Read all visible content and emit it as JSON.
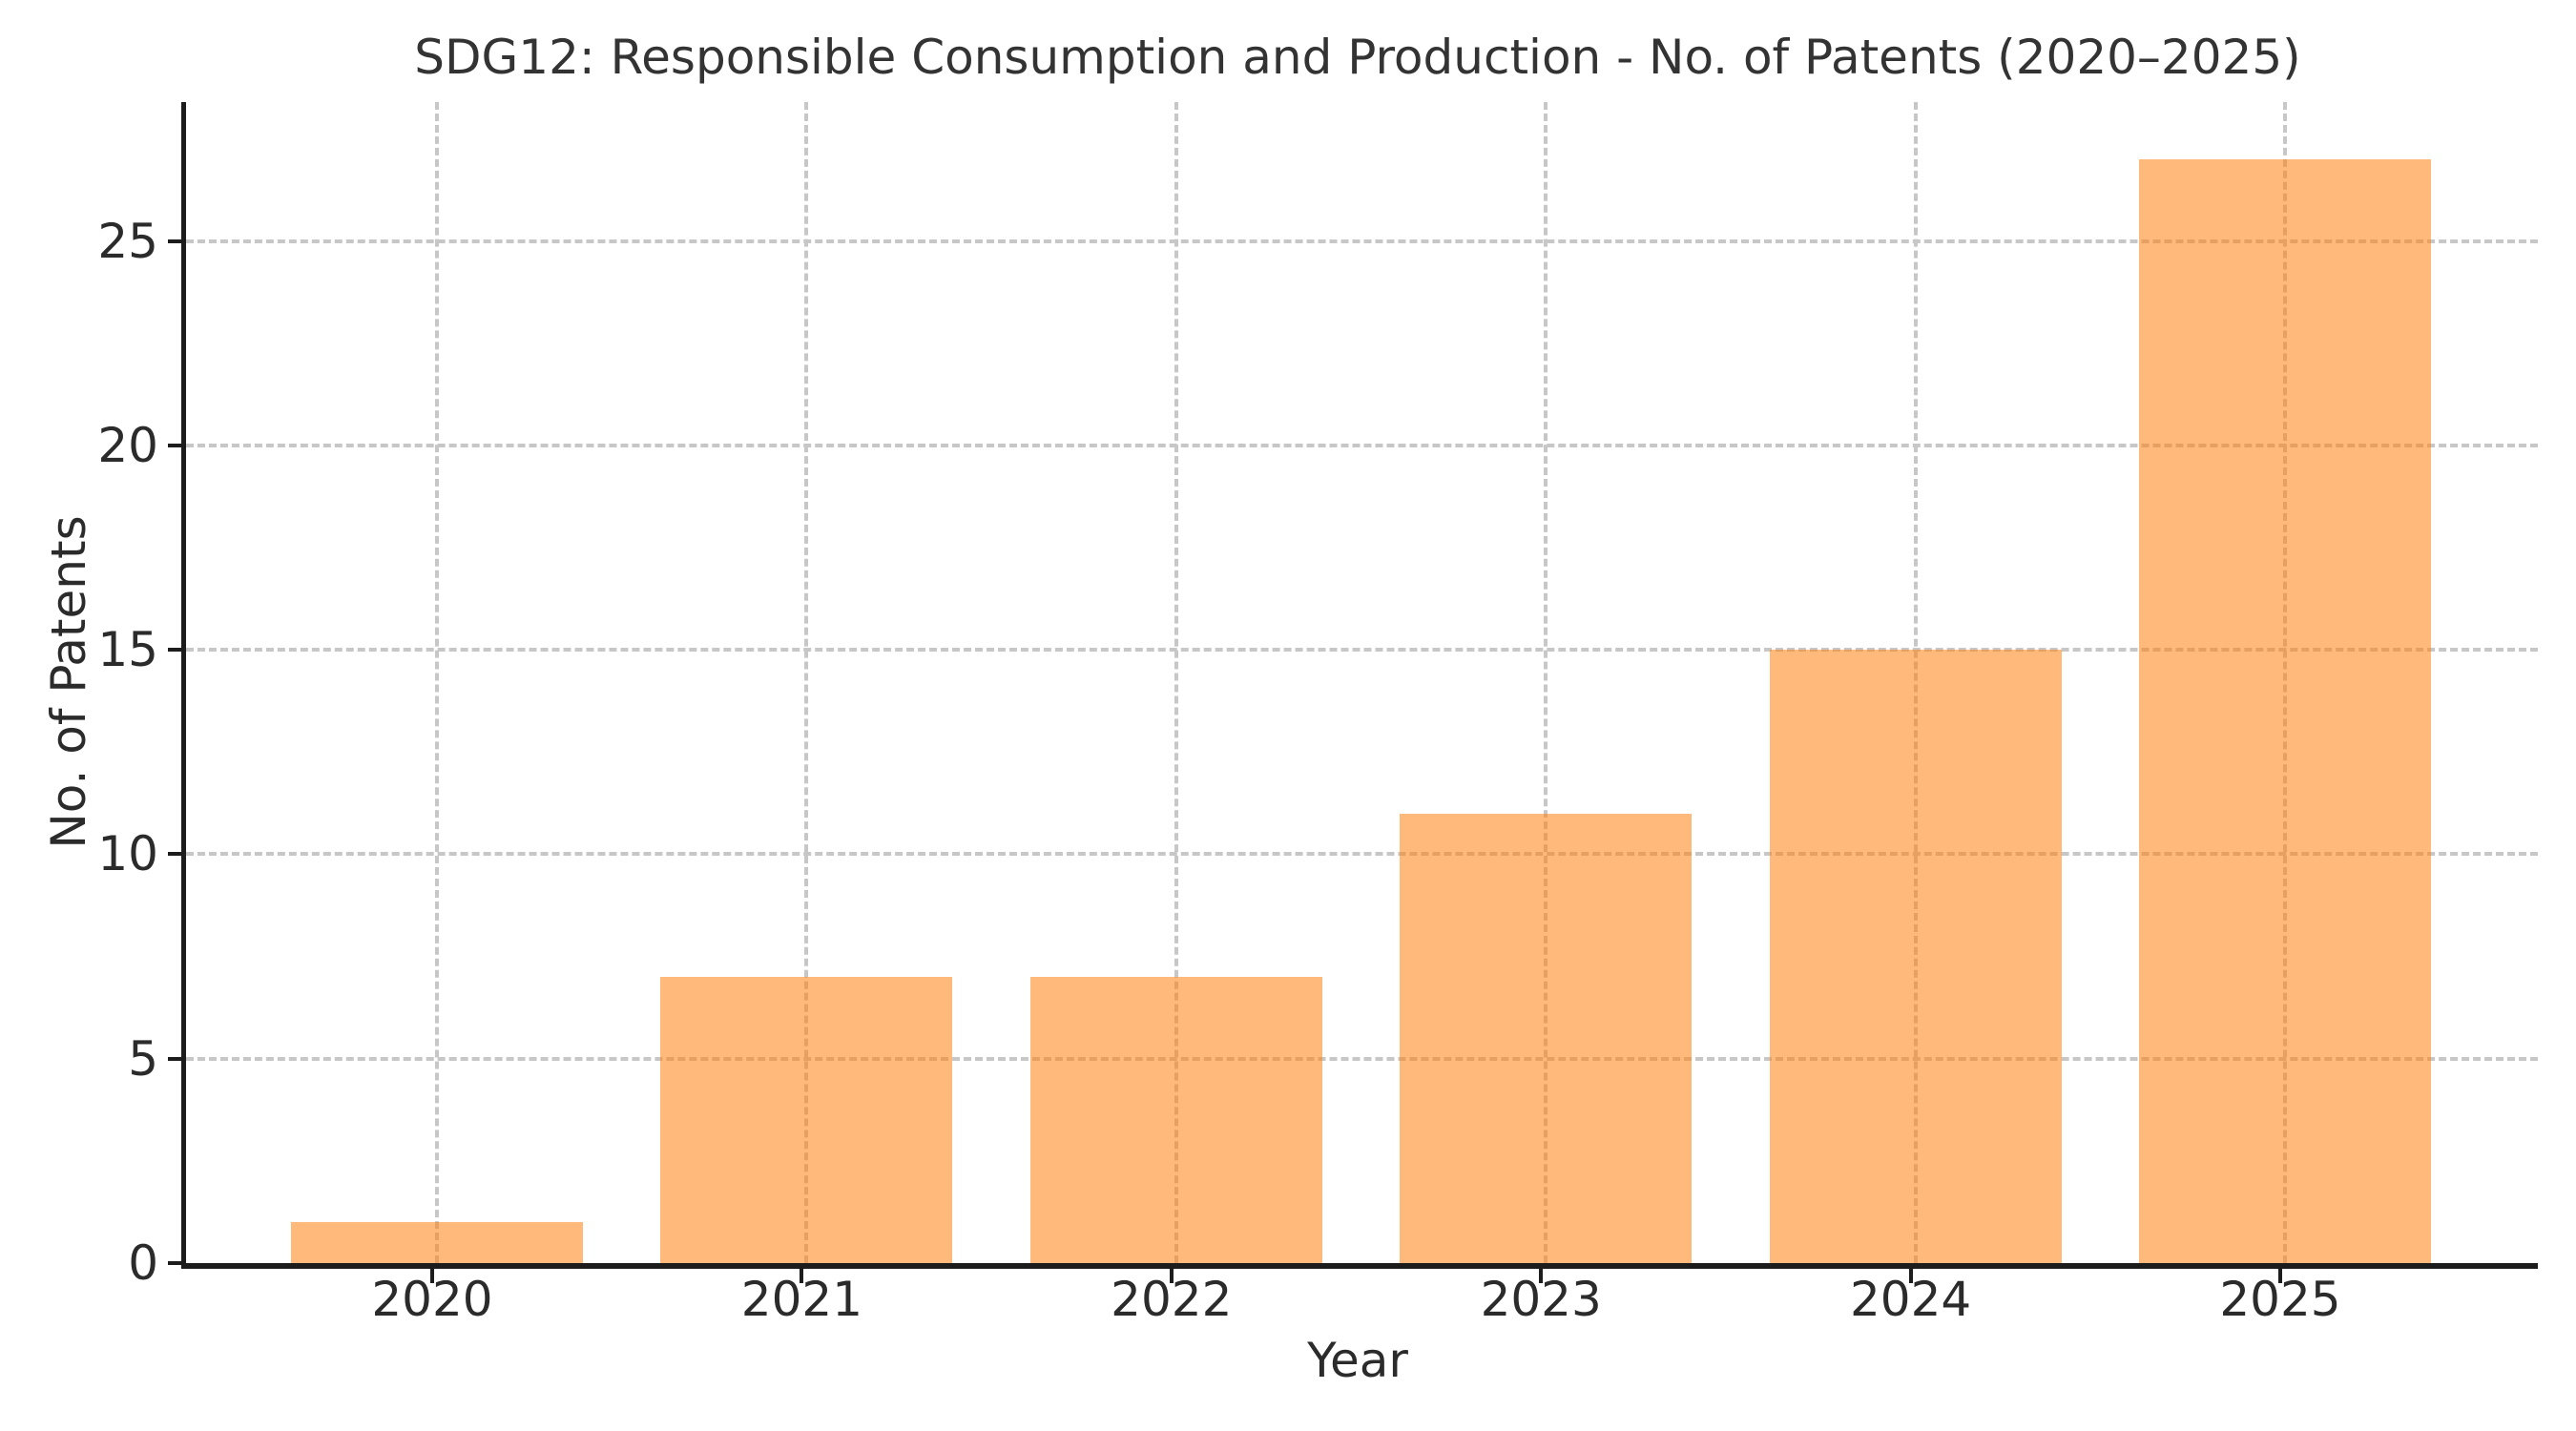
{
  "chart_data": {
    "type": "bar",
    "title": "SDG12: Responsible Consumption and Production - No. of Patents (2020–2025)",
    "xlabel": "Year",
    "ylabel": "No. of Patents",
    "categories": [
      "2020",
      "2021",
      "2022",
      "2023",
      "2024",
      "2025"
    ],
    "values": [
      1,
      7,
      7,
      11,
      15,
      27
    ],
    "ylim": [
      0,
      28.4
    ],
    "yticks": [
      0,
      5,
      10,
      15,
      20,
      25
    ],
    "grid": true,
    "grid_style": "dashed",
    "grid_axes": "both",
    "legend": "none",
    "colors": {
      "bar_fill_base": "#ff7f0e",
      "bar_alpha": 0.55,
      "bar_rendered": "#ffb97a",
      "grid": "#c7c7c7",
      "spine": "#1c1c1c",
      "text": "#2b2b2b",
      "title_text": "#333333",
      "background": "#ffffff"
    }
  }
}
